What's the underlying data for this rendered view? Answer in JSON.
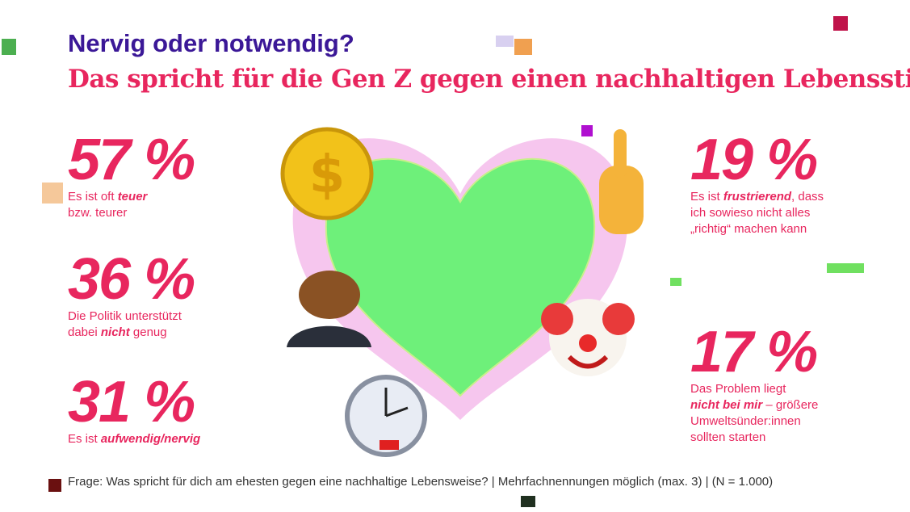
{
  "header": {
    "title": "Nervig oder notwendig?",
    "subtitle": "Das spricht für die Gen Z gegen einen nachhaltigen Lebensstil"
  },
  "stats": [
    {
      "figure": "57 %",
      "lines": [
        [
          "Es ist oft ",
          {
            "bold": "teuer"
          }
        ],
        [
          "bzw. teurer"
        ]
      ]
    },
    {
      "figure": "36 %",
      "lines": [
        [
          "Die Politik unterstützt"
        ],
        [
          "dabei ",
          {
            "bold": "nicht"
          },
          " genug"
        ]
      ]
    },
    {
      "figure": "31 %",
      "lines": [
        [
          "Es ist ",
          {
            "bold": "aufwendig/nervig"
          }
        ]
      ]
    },
    {
      "figure": "19 %",
      "lines": [
        [
          "Es ist ",
          {
            "bold": "frustrierend"
          },
          ", dass"
        ],
        [
          "ich sowieso nicht alles"
        ],
        [
          "„richtig“ machen kann"
        ]
      ]
    },
    {
      "figure": "17 %",
      "lines": [
        [
          "Das Problem liegt"
        ],
        [
          {
            "bold": "nicht bei mir"
          },
          " – größere"
        ],
        [
          "Umweltsünder:innen"
        ],
        [
          "sollten starten"
        ]
      ]
    }
  ],
  "footer": "Frage: Was spricht für dich am ehesten gegen eine nachhaltige Lebensweise? | Mehrfachnennungen möglich (max. 3) | (N = 1.000)"
}
